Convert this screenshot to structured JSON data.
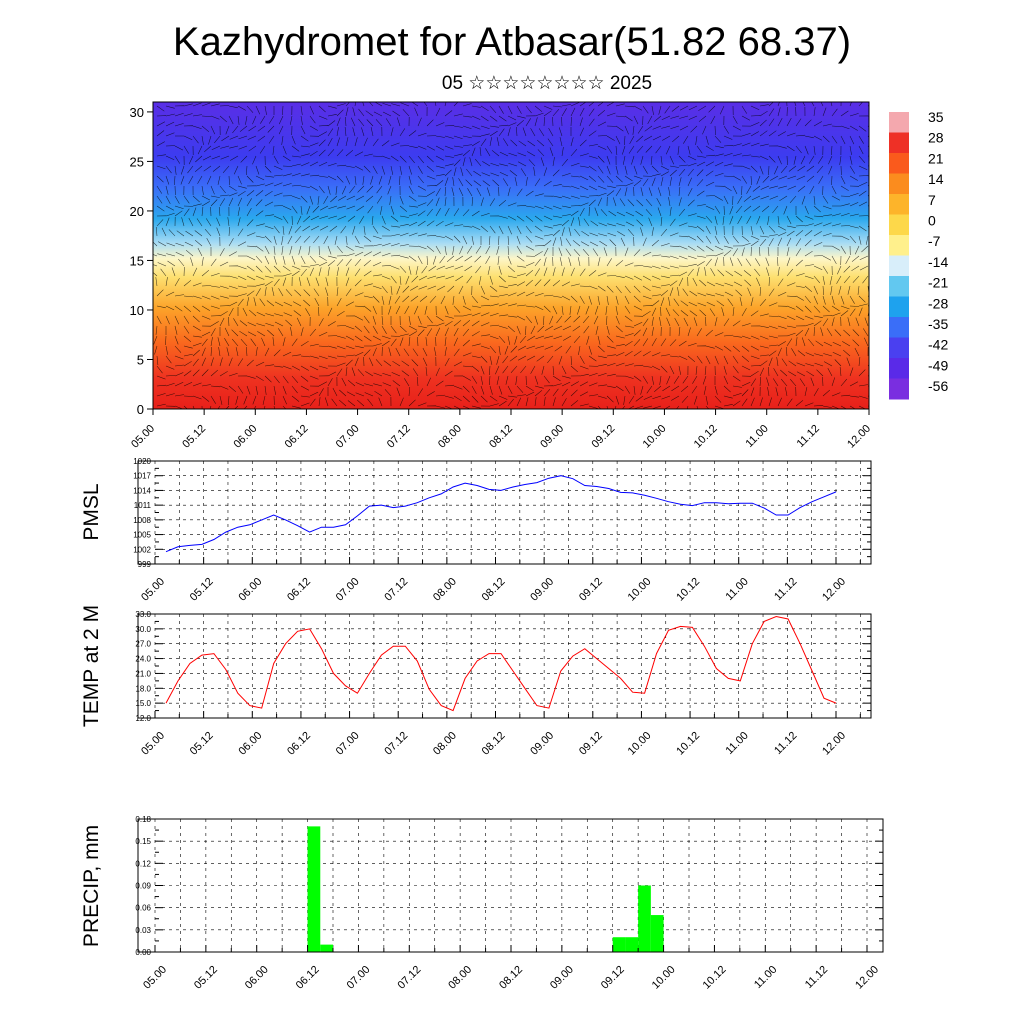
{
  "title": "Kazhydromet for Atbasar(51.82 68.37)",
  "subtitle": "05 ☆☆☆☆☆☆☆☆ 2025",
  "time_ticks": [
    "05.00",
    "05.12",
    "06.00",
    "06.12",
    "07.00",
    "07.12",
    "08.00",
    "08.12",
    "09.00",
    "09.12",
    "10.00",
    "10.12",
    "11.00",
    "11.12",
    "12.00"
  ],
  "chart_data": [
    {
      "type": "heatmap",
      "title": "",
      "xlabel": "",
      "ylabel": "",
      "x": [
        "05.00",
        "05.12",
        "06.00",
        "06.12",
        "07.00",
        "07.12",
        "08.00",
        "08.12",
        "09.00",
        "09.12",
        "10.00",
        "10.12",
        "11.00",
        "11.12",
        "12.00"
      ],
      "ylim": [
        0,
        31
      ],
      "yticks": [
        0,
        5,
        10,
        15,
        20,
        25,
        30
      ],
      "colorbar_labels": [
        "35",
        "28",
        "21",
        "14",
        "7",
        "0",
        "-7",
        "-14",
        "-21",
        "-28",
        "-35",
        "-42",
        "-49",
        "-56"
      ],
      "colorbar_colors": [
        "#f4a8ae",
        "#ee3026",
        "#fa5a1c",
        "#fb8c1e",
        "#fdb42a",
        "#fdd84a",
        "#fff08c",
        "#d8eefa",
        "#62c8f0",
        "#1ea2ee",
        "#3a6ef8",
        "#4a40f0",
        "#5a2ae8",
        "#7a2ee0"
      ],
      "overlay": "wind vectors",
      "temperature_profile": [
        {
          "height": 0,
          "value": 28
        },
        {
          "height": 5,
          "value": 22
        },
        {
          "height": 10,
          "value": 12
        },
        {
          "height": 15,
          "value": -2
        },
        {
          "height": 20,
          "value": -30
        },
        {
          "height": 25,
          "value": -49
        },
        {
          "height": 30,
          "value": -56
        }
      ]
    },
    {
      "type": "line",
      "ylabel": "PMSL",
      "ylim": [
        999,
        1020
      ],
      "yticks": [
        999,
        1002,
        1005,
        1008,
        1011,
        1014,
        1017,
        1020
      ],
      "x": [
        0,
        3,
        6,
        9,
        12,
        15,
        18,
        21,
        24,
        27,
        30,
        33,
        36,
        39,
        42,
        45,
        48,
        51,
        54,
        57,
        60,
        63,
        66,
        69,
        72,
        75,
        78,
        81,
        84,
        87,
        90,
        93,
        96,
        99,
        102,
        105,
        108,
        111,
        114,
        117,
        120,
        123,
        126,
        129,
        132,
        135,
        138,
        141,
        144,
        147,
        150,
        153,
        156,
        159,
        162,
        165,
        168
      ],
      "series": [
        {
          "color": "#0000ff",
          "values": [
            1001.5,
            1002.5,
            1002.8,
            1003.0,
            1004.0,
            1005.5,
            1006.5,
            1007.0,
            1008.0,
            1009.0,
            1008.0,
            1006.8,
            1005.5,
            1006.5,
            1006.5,
            1007.0,
            1008.8,
            1010.8,
            1011.0,
            1010.5,
            1010.8,
            1011.5,
            1012.5,
            1013.3,
            1014.7,
            1015.5,
            1015.0,
            1014.2,
            1014.0,
            1014.7,
            1015.2,
            1015.6,
            1016.5,
            1017.0,
            1016.4,
            1015.0,
            1014.8,
            1014.4,
            1013.6,
            1013.5,
            1013.0,
            1012.4,
            1011.7,
            1011.2,
            1010.9,
            1011.5,
            1011.5,
            1011.3,
            1011.4,
            1011.4,
            1010.4,
            1009.0,
            1009.0,
            1010.5,
            1011.7,
            1012.7,
            1013.7
          ]
        }
      ]
    },
    {
      "type": "line",
      "ylabel": "TEMP at 2 M",
      "ylim": [
        12,
        33
      ],
      "yticks": [
        12.0,
        15.0,
        18.0,
        21.0,
        24.0,
        27.0,
        30.0,
        33.0
      ],
      "ytick_labels": [
        "12.0",
        "15.0",
        "18.0",
        "21.0",
        "24.0",
        "27.0",
        "30.0",
        "33.0"
      ],
      "x": [
        0,
        3,
        6,
        9,
        12,
        15,
        18,
        21,
        24,
        27,
        30,
        33,
        36,
        39,
        42,
        45,
        48,
        51,
        54,
        57,
        60,
        63,
        66,
        69,
        72,
        75,
        78,
        81,
        84,
        87,
        90,
        93,
        96,
        99,
        102,
        105,
        108,
        111,
        114,
        117,
        120,
        123,
        126,
        129,
        132,
        135,
        138,
        141,
        144,
        147,
        150,
        153,
        156,
        159,
        162,
        165,
        168
      ],
      "series": [
        {
          "color": "#ff0000",
          "values": [
            15.0,
            19.5,
            23.0,
            24.7,
            25.0,
            21.8,
            17.0,
            14.5,
            14.0,
            23.0,
            27.0,
            29.5,
            30.0,
            26.0,
            21.0,
            18.5,
            17.0,
            21.0,
            24.7,
            26.5,
            26.5,
            23.5,
            17.8,
            14.5,
            13.5,
            20.0,
            23.5,
            25.0,
            25.0,
            21.5,
            18.0,
            14.5,
            14.0,
            21.5,
            24.5,
            26.0,
            24.0,
            22.0,
            20.0,
            17.2,
            17.0,
            25.0,
            29.7,
            30.5,
            30.3,
            26.5,
            22.0,
            20.0,
            19.5,
            27.0,
            31.5,
            32.5,
            32.0,
            27.0,
            21.5,
            16.0,
            15.0
          ]
        }
      ]
    },
    {
      "type": "bar",
      "ylabel": "PRECIP, mm",
      "ylim": [
        0,
        0.18
      ],
      "yticks": [
        0.0,
        0.03,
        0.06,
        0.09,
        0.12,
        0.15,
        0.18
      ],
      "ytick_labels": [
        "0.00",
        "0.03",
        "0.06",
        "0.09",
        "0.12",
        "0.15",
        "0.18"
      ],
      "bar_hours": [
        36,
        39,
        108,
        111,
        114,
        117,
        120
      ],
      "bar_width_hours": 3,
      "values": [
        0.17,
        0.01,
        0.02,
        0.02,
        0.09,
        0.05,
        0.0
      ],
      "color": "#00ff00"
    }
  ]
}
